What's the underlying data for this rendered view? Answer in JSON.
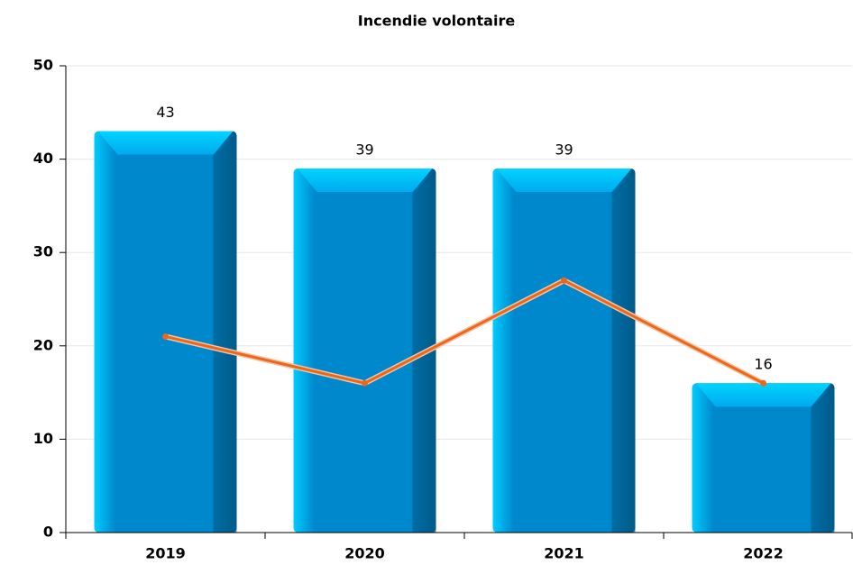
{
  "chart_data": {
    "type": "bar",
    "title": "Incendie volontaire",
    "categories": [
      "2019",
      "2020",
      "2021",
      "2022"
    ],
    "series": [
      {
        "type": "bar",
        "color": "#0088cc",
        "values": [
          43,
          39,
          39,
          16
        ]
      },
      {
        "type": "line",
        "color": "#e8691e",
        "values": [
          21,
          16,
          27,
          16
        ]
      }
    ],
    "ylim": [
      0,
      50
    ],
    "yticks": [
      0,
      10,
      20,
      30,
      40,
      50
    ],
    "grid": true
  }
}
